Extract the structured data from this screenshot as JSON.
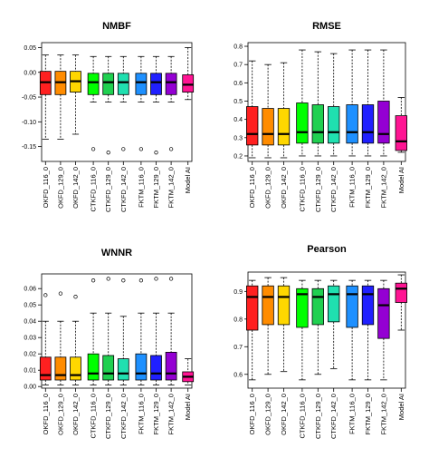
{
  "figure": {
    "panels": [
      "NMBF",
      "RMSE",
      "WNNR",
      "Pearson"
    ]
  },
  "chart_data": [
    {
      "type": "box",
      "title": "NMBF",
      "xlabel": "",
      "ylabel": "",
      "categories": [
        "OKFD_116_0",
        "OKFD_129_0",
        "OKFD_142_0",
        "CTKFD_116_0",
        "CTKFD_129_0",
        "CTKFD_142_0",
        "FKTM_116_0",
        "FKTM_129_0",
        "FKTM_142_0",
        "Model AI"
      ],
      "colors": [
        "#ff2020",
        "#ff8c00",
        "#ffd700",
        "#00ff00",
        "#20d050",
        "#20e0b0",
        "#1e90ff",
        "#2020ff",
        "#9400d3",
        "#ff1493"
      ],
      "ylim": [
        -0.18,
        0.06
      ],
      "yticks": [
        -0.15,
        -0.1,
        -0.05,
        0.0,
        0.05
      ],
      "ytick_labels": [
        "-0.15",
        "-0.10",
        "-0.05",
        "0.00",
        "0.05"
      ],
      "boxes": [
        {
          "min": -0.135,
          "q1": -0.045,
          "median": -0.02,
          "q3": 0.002,
          "max": 0.035,
          "outliers": []
        },
        {
          "min": -0.135,
          "q1": -0.045,
          "median": -0.02,
          "q3": 0.002,
          "max": 0.035,
          "outliers": []
        },
        {
          "min": -0.125,
          "q1": -0.04,
          "median": -0.018,
          "q3": 0.002,
          "max": 0.035,
          "outliers": []
        },
        {
          "min": -0.06,
          "q1": -0.045,
          "median": -0.02,
          "q3": -0.002,
          "max": 0.032,
          "outliers": [
            -0.155
          ]
        },
        {
          "min": -0.06,
          "q1": -0.045,
          "median": -0.02,
          "q3": -0.002,
          "max": 0.032,
          "outliers": [
            -0.162
          ]
        },
        {
          "min": -0.06,
          "q1": -0.045,
          "median": -0.02,
          "q3": -0.002,
          "max": 0.032,
          "outliers": [
            -0.155
          ]
        },
        {
          "min": -0.06,
          "q1": -0.045,
          "median": -0.02,
          "q3": -0.002,
          "max": 0.032,
          "outliers": [
            -0.155
          ]
        },
        {
          "min": -0.06,
          "q1": -0.045,
          "median": -0.02,
          "q3": -0.002,
          "max": 0.032,
          "outliers": [
            -0.162
          ]
        },
        {
          "min": -0.06,
          "q1": -0.045,
          "median": -0.02,
          "q3": -0.002,
          "max": 0.032,
          "outliers": [
            -0.155
          ]
        },
        {
          "min": -0.055,
          "q1": -0.04,
          "median": -0.025,
          "q3": -0.005,
          "max": 0.05,
          "outliers": []
        }
      ]
    },
    {
      "type": "box",
      "title": "RMSE",
      "xlabel": "",
      "ylabel": "",
      "categories": [
        "OKFD_116_0",
        "OKFD_129_0",
        "OKFD_142_0",
        "CTKFD_116_0",
        "CTKFD_129_0",
        "CTKFD_142_0",
        "FKTM_116_0",
        "FKTM_129_0",
        "FKTM_142_0",
        "Model AI"
      ],
      "colors": [
        "#ff2020",
        "#ff8c00",
        "#ffd700",
        "#00ff00",
        "#20d050",
        "#20e0b0",
        "#1e90ff",
        "#2020ff",
        "#9400d3",
        "#ff1493"
      ],
      "ylim": [
        0.17,
        0.82
      ],
      "yticks": [
        0.2,
        0.3,
        0.4,
        0.5,
        0.6,
        0.7,
        0.8
      ],
      "ytick_labels": [
        "0.2",
        "0.3",
        "0.4",
        "0.5",
        "0.6",
        "0.7",
        "0.8"
      ],
      "boxes": [
        {
          "min": 0.19,
          "q1": 0.26,
          "median": 0.32,
          "q3": 0.47,
          "max": 0.72,
          "outliers": []
        },
        {
          "min": 0.19,
          "q1": 0.26,
          "median": 0.32,
          "q3": 0.46,
          "max": 0.7,
          "outliers": []
        },
        {
          "min": 0.19,
          "q1": 0.26,
          "median": 0.32,
          "q3": 0.46,
          "max": 0.71,
          "outliers": []
        },
        {
          "min": 0.2,
          "q1": 0.27,
          "median": 0.33,
          "q3": 0.49,
          "max": 0.78,
          "outliers": []
        },
        {
          "min": 0.2,
          "q1": 0.27,
          "median": 0.33,
          "q3": 0.48,
          "max": 0.77,
          "outliers": []
        },
        {
          "min": 0.2,
          "q1": 0.27,
          "median": 0.33,
          "q3": 0.47,
          "max": 0.76,
          "outliers": []
        },
        {
          "min": 0.2,
          "q1": 0.27,
          "median": 0.33,
          "q3": 0.48,
          "max": 0.78,
          "outliers": []
        },
        {
          "min": 0.2,
          "q1": 0.27,
          "median": 0.33,
          "q3": 0.48,
          "max": 0.78,
          "outliers": []
        },
        {
          "min": 0.2,
          "q1": 0.27,
          "median": 0.32,
          "q3": 0.5,
          "max": 0.78,
          "outliers": []
        },
        {
          "min": 0.22,
          "q1": 0.23,
          "median": 0.28,
          "q3": 0.42,
          "max": 0.52,
          "outliers": []
        }
      ]
    },
    {
      "type": "box",
      "title": "WNNR",
      "xlabel": "",
      "ylabel": "",
      "categories": [
        "OKFD_116_0",
        "OKFD_129_0",
        "OKFD_142_0",
        "CTKFD_116_0",
        "CTKFD_129_0",
        "CTKFD_142_0",
        "FKTM_116_0",
        "FKTM_129_0",
        "FKTM_142_0",
        "Model AI"
      ],
      "colors": [
        "#ff2020",
        "#ff8c00",
        "#ffd700",
        "#00ff00",
        "#20d050",
        "#20e0b0",
        "#1e90ff",
        "#2020ff",
        "#9400d3",
        "#ff1493"
      ],
      "ylim": [
        -0.001,
        0.069
      ],
      "yticks": [
        0.0,
        0.01,
        0.02,
        0.03,
        0.04,
        0.05,
        0.06
      ],
      "ytick_labels": [
        "0.00",
        "0.01",
        "0.02",
        "0.03",
        "0.04",
        "0.05",
        "0.06"
      ],
      "boxes": [
        {
          "min": 0.001,
          "q1": 0.004,
          "median": 0.007,
          "q3": 0.018,
          "max": 0.04,
          "outliers": [
            0.056
          ]
        },
        {
          "min": 0.001,
          "q1": 0.004,
          "median": 0.007,
          "q3": 0.018,
          "max": 0.04,
          "outliers": [
            0.057
          ]
        },
        {
          "min": 0.001,
          "q1": 0.004,
          "median": 0.007,
          "q3": 0.018,
          "max": 0.04,
          "outliers": [
            0.055
          ]
        },
        {
          "min": 0.001,
          "q1": 0.004,
          "median": 0.008,
          "q3": 0.02,
          "max": 0.045,
          "outliers": [
            0.065
          ]
        },
        {
          "min": 0.001,
          "q1": 0.004,
          "median": 0.008,
          "q3": 0.019,
          "max": 0.045,
          "outliers": [
            0.066
          ]
        },
        {
          "min": 0.001,
          "q1": 0.004,
          "median": 0.008,
          "q3": 0.017,
          "max": 0.043,
          "outliers": [
            0.065
          ]
        },
        {
          "min": 0.001,
          "q1": 0.004,
          "median": 0.008,
          "q3": 0.02,
          "max": 0.045,
          "outliers": [
            0.065
          ]
        },
        {
          "min": 0.001,
          "q1": 0.004,
          "median": 0.008,
          "q3": 0.019,
          "max": 0.045,
          "outliers": [
            0.066
          ]
        },
        {
          "min": 0.001,
          "q1": 0.004,
          "median": 0.008,
          "q3": 0.021,
          "max": 0.045,
          "outliers": [
            0.066
          ]
        },
        {
          "min": 0.001,
          "q1": 0.003,
          "median": 0.006,
          "q3": 0.009,
          "max": 0.017,
          "outliers": []
        }
      ]
    },
    {
      "type": "box",
      "title": "Pearson",
      "xlabel": "",
      "ylabel": "",
      "categories": [
        "OKFD_116_0",
        "OKFD_129_0",
        "OKFD_142_0",
        "CTKFD_116_0",
        "CTKFD_129_0",
        "CTKFD_142_0",
        "FKTM_116_0",
        "FKTM_129_0",
        "FKTM_142_0",
        "Model AI"
      ],
      "colors": [
        "#ff2020",
        "#ff8c00",
        "#ffd700",
        "#00ff00",
        "#20d050",
        "#20e0b0",
        "#1e90ff",
        "#2020ff",
        "#9400d3",
        "#ff1493"
      ],
      "ylim": [
        0.55,
        0.97
      ],
      "yticks": [
        0.6,
        0.7,
        0.8,
        0.9
      ],
      "ytick_labels": [
        "0.6",
        "0.7",
        "0.8",
        "0.9"
      ],
      "boxes": [
        {
          "min": 0.58,
          "q1": 0.76,
          "median": 0.88,
          "q3": 0.92,
          "max": 0.94,
          "outliers": []
        },
        {
          "min": 0.6,
          "q1": 0.78,
          "median": 0.88,
          "q3": 0.92,
          "max": 0.95,
          "outliers": []
        },
        {
          "min": 0.61,
          "q1": 0.78,
          "median": 0.88,
          "q3": 0.92,
          "max": 0.95,
          "outliers": []
        },
        {
          "min": 0.58,
          "q1": 0.77,
          "median": 0.89,
          "q3": 0.91,
          "max": 0.94,
          "outliers": []
        },
        {
          "min": 0.6,
          "q1": 0.78,
          "median": 0.88,
          "q3": 0.91,
          "max": 0.94,
          "outliers": []
        },
        {
          "min": 0.62,
          "q1": 0.79,
          "median": 0.89,
          "q3": 0.92,
          "max": 0.94,
          "outliers": []
        },
        {
          "min": 0.58,
          "q1": 0.77,
          "median": 0.89,
          "q3": 0.92,
          "max": 0.94,
          "outliers": []
        },
        {
          "min": 0.58,
          "q1": 0.78,
          "median": 0.89,
          "q3": 0.92,
          "max": 0.94,
          "outliers": []
        },
        {
          "min": 0.58,
          "q1": 0.73,
          "median": 0.85,
          "q3": 0.91,
          "max": 0.94,
          "outliers": []
        },
        {
          "min": 0.76,
          "q1": 0.86,
          "median": 0.91,
          "q3": 0.93,
          "max": 0.96,
          "outliers": []
        }
      ]
    }
  ]
}
